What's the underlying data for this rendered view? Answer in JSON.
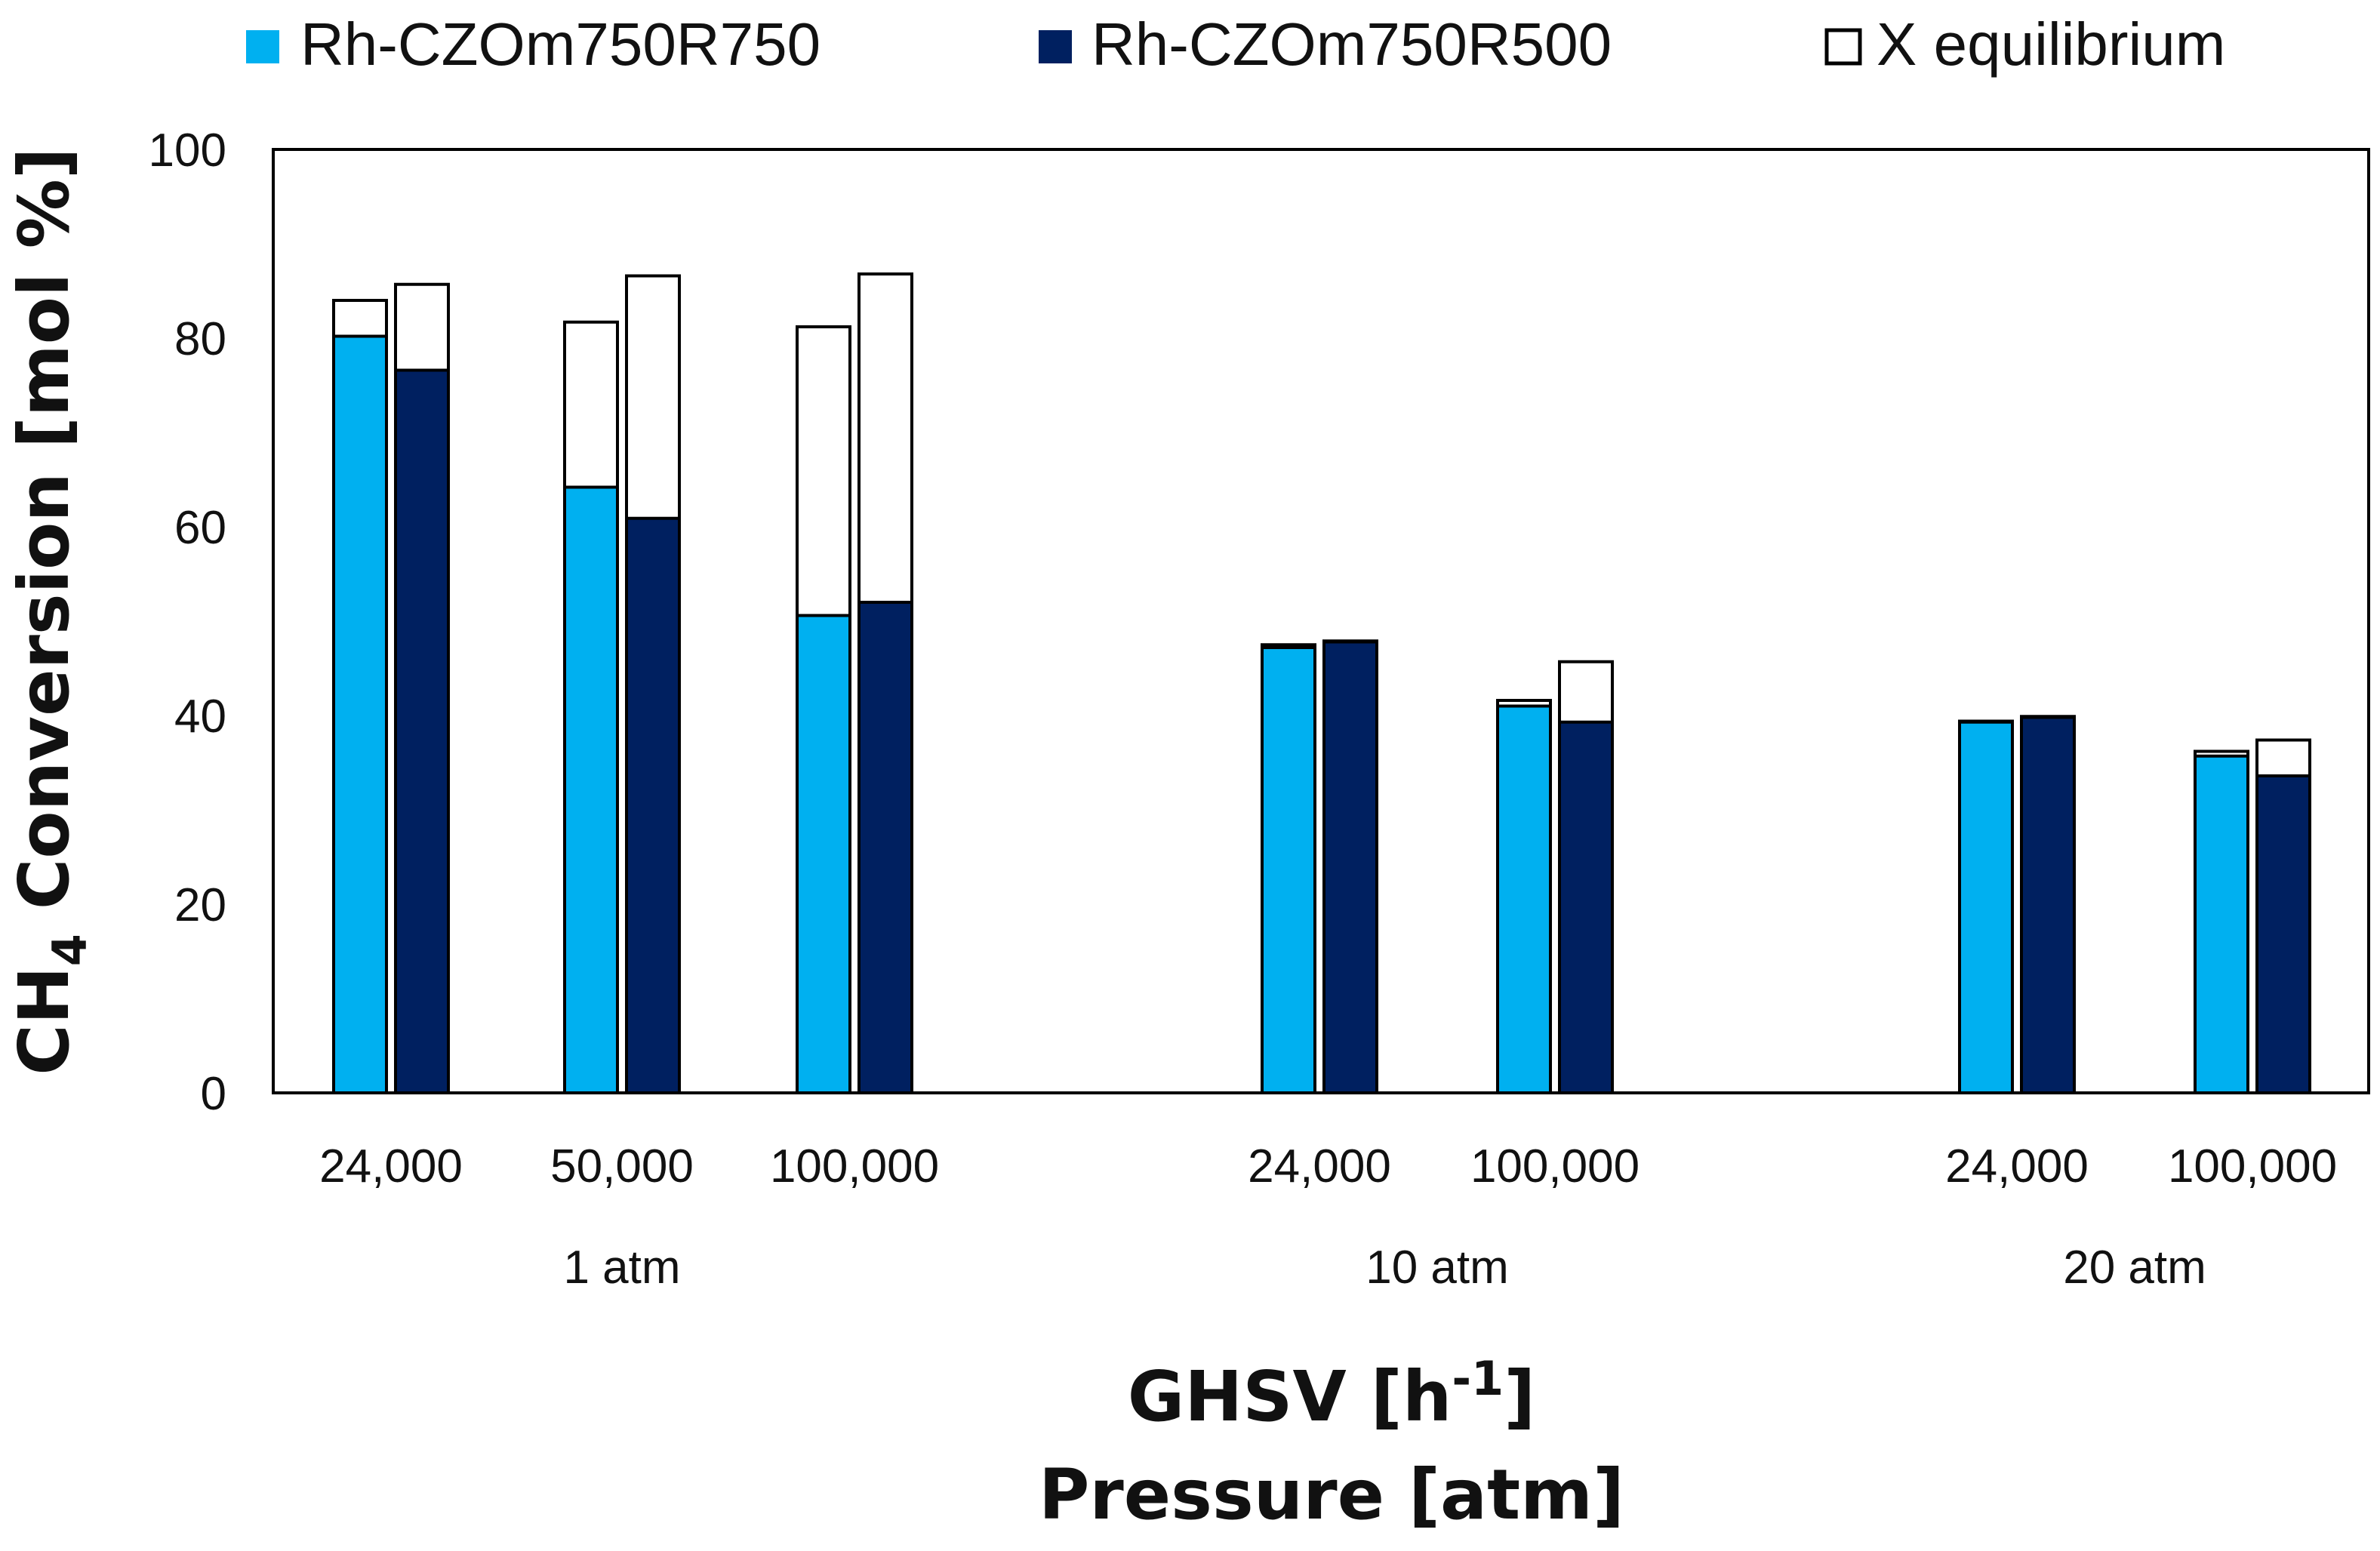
{
  "chart_data": {
    "type": "bar",
    "title": "",
    "xlabel": "GHSV [h-1] Pressure [atm]",
    "xlabel_line1": "GHSV [h",
    "xlabel_line1_sup": "-1",
    "xlabel_line1_end": "]",
    "xlabel_line2": "Pressure [atm]",
    "ylabel": "CH4 Conversion [mol %]",
    "ylabel_prefix": "CH",
    "ylabel_sub": "4",
    "ylabel_suffix": " Conversion [mol %]",
    "ylim": [
      0,
      100
    ],
    "yticks": [
      0,
      20,
      40,
      60,
      80,
      100
    ],
    "legend_position": "top",
    "categories": [
      "24,000",
      "50,000",
      "100,000",
      "24,000",
      "100,000",
      "24,000",
      "100,000"
    ],
    "groups": [
      {
        "label": "1 atm",
        "categories": [
          "24,000",
          "50,000",
          "100,000"
        ]
      },
      {
        "label": "10 atm",
        "categories": [
          "24,000",
          "100,000"
        ]
      },
      {
        "label": "20 atm",
        "categories": [
          "24,000",
          "100,000"
        ]
      }
    ],
    "series": [
      {
        "name": "Rh-CZOm750R750",
        "color": "#00b0f0",
        "values": [
          80.2,
          64.2,
          50.6,
          47.2,
          41.0,
          39.3,
          35.7
        ],
        "equilibrium": [
          84.0,
          81.7,
          81.2,
          47.5,
          41.6,
          39.4,
          36.2
        ]
      },
      {
        "name": "Rh-CZOm750R500",
        "color": "#002060",
        "values": [
          76.6,
          60.9,
          52.0,
          47.8,
          39.3,
          39.8,
          33.6
        ],
        "equilibrium": [
          85.7,
          86.6,
          86.8,
          47.9,
          45.7,
          39.9,
          37.4
        ]
      }
    ],
    "equilibrium_legend": {
      "name": "X equilibrium",
      "color": "#ffffff"
    }
  }
}
